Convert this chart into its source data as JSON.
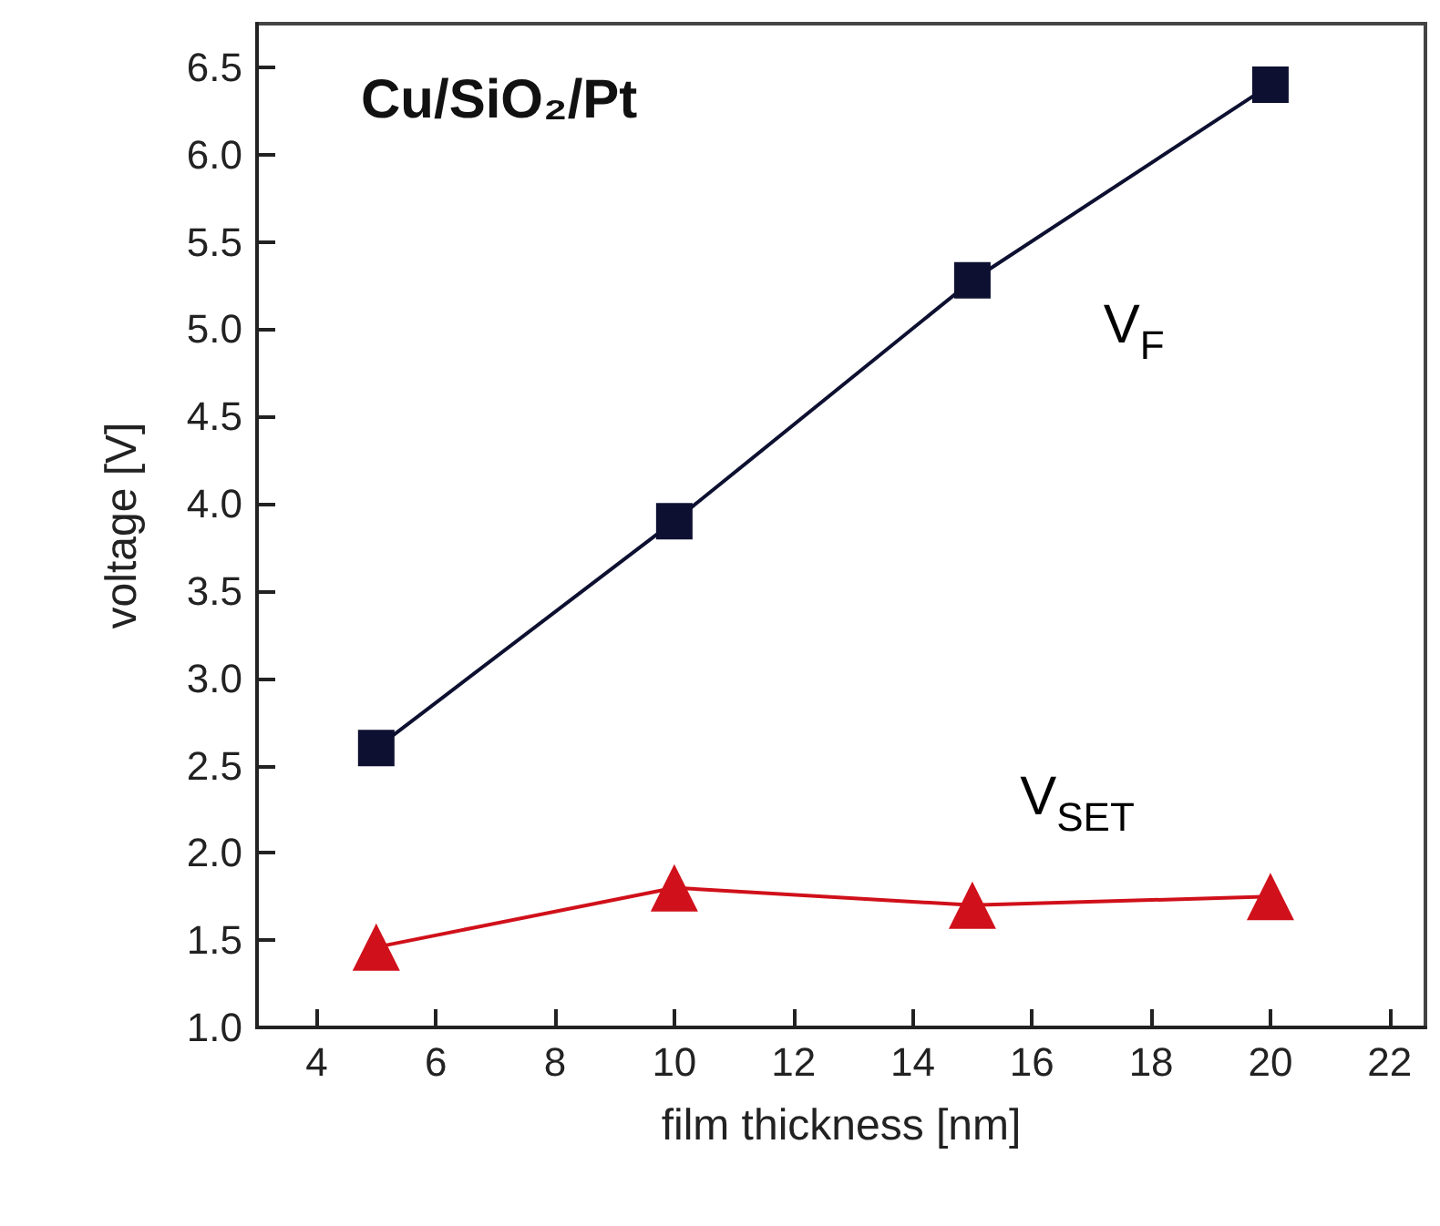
{
  "chart_data": {
    "type": "line",
    "xlabel": "film thickness [nm]",
    "ylabel": "voltage [V]",
    "annotations": [
      "Cu/SiO₂/Pt"
    ],
    "x": [
      5,
      10,
      15,
      20
    ],
    "series": [
      {
        "name": "V$_{F}$",
        "color": "#0d1030",
        "values": [
          2.6,
          3.9,
          5.28,
          6.4
        ],
        "marker": "square"
      },
      {
        "name": "V$_{SET}$",
        "color": "#d0101a",
        "values": [
          1.46,
          1.8,
          1.7,
          1.75
        ],
        "marker": "triangle"
      }
    ],
    "xlim": [
      3,
      22.6
    ],
    "xticks": [
      4,
      6,
      8,
      10,
      12,
      14,
      16,
      18,
      20,
      22
    ],
    "ylim": [
      1.0,
      6.75
    ],
    "yticks": [
      {
        "value": 1,
        "label": "1.0"
      },
      1.5,
      {
        "value": 2,
        "label": "2.0"
      },
      2.5,
      {
        "value": 3,
        "label": "3.0"
      },
      3.5,
      {
        "value": 4,
        "label": "4.0"
      },
      4.5,
      {
        "value": 5,
        "label": "5.0"
      },
      5.5,
      {
        "value": 6,
        "label": "6.0"
      },
      6.5
    ],
    "grid": false,
    "legend": false
  }
}
